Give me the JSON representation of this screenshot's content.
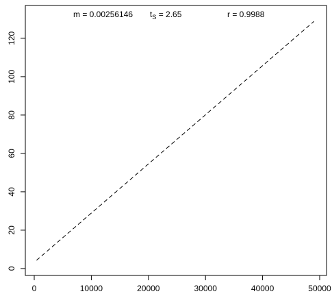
{
  "chart_data": {
    "type": "line",
    "annotations": {
      "m": "m = 0.00256146",
      "t": {
        "base": "t",
        "sub": "S",
        "rest": " = 2.65"
      },
      "r": "r = 0.9988"
    },
    "x": [
      400,
      49000
    ],
    "series": [
      {
        "color": "#000000",
        "dash": "dashed",
        "values": [
          4.3,
          128.8
        ]
      }
    ],
    "xlim": [
      -1560,
      51200
    ],
    "ylim": [
      -3.6,
      137.1
    ],
    "xticks": [
      0,
      10000,
      20000,
      30000,
      40000,
      50000
    ],
    "yticks": [
      0,
      20,
      40,
      60,
      80,
      100,
      120
    ],
    "grid": false
  }
}
